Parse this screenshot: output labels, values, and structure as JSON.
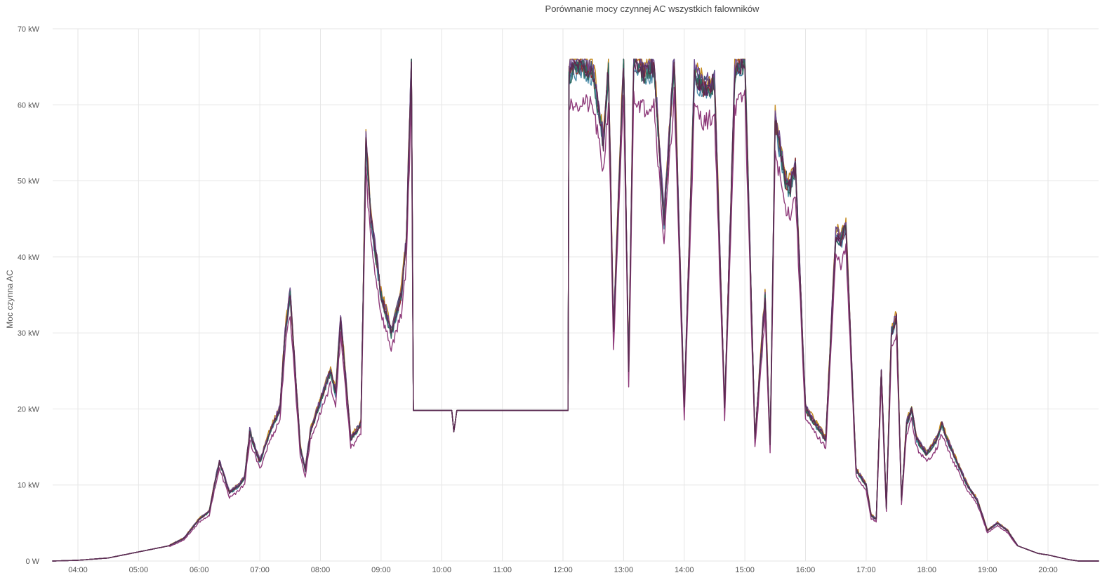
{
  "chart_data": {
    "type": "line",
    "title": "Porównanie mocy czynnej AC wszystkich falowników",
    "ylabel": "Moc czynna AC",
    "xlabel": "",
    "ylim": [
      0,
      70
    ],
    "y_unit": "kW",
    "y_ticks": [
      {
        "value": 0,
        "label": "0 W"
      },
      {
        "value": 10,
        "label": "10 kW"
      },
      {
        "value": 20,
        "label": "20 kW"
      },
      {
        "value": 30,
        "label": "30 kW"
      },
      {
        "value": 40,
        "label": "40 kW"
      },
      {
        "value": 50,
        "label": "50 kW"
      },
      {
        "value": 60,
        "label": "60 kW"
      },
      {
        "value": 70,
        "label": "70 kW"
      }
    ],
    "xlim": [
      "03:35",
      "20:50"
    ],
    "x_ticks": [
      "04:00",
      "05:00",
      "06:00",
      "07:00",
      "08:00",
      "09:00",
      "10:00",
      "11:00",
      "12:00",
      "13:00",
      "14:00",
      "15:00",
      "16:00",
      "17:00",
      "18:00",
      "19:00",
      "20:00"
    ],
    "grid": true,
    "legend": "none",
    "base_series": {
      "x": [
        "03:35",
        "04:00",
        "04:30",
        "05:00",
        "05:30",
        "05:45",
        "06:00",
        "06:10",
        "06:15",
        "06:20",
        "06:30",
        "06:40",
        "06:45",
        "06:50",
        "07:00",
        "07:10",
        "07:20",
        "07:25",
        "07:30",
        "07:40",
        "07:45",
        "07:50",
        "08:00",
        "08:10",
        "08:15",
        "08:20",
        "08:30",
        "08:40",
        "08:45",
        "08:50",
        "09:00",
        "09:10",
        "09:20",
        "09:25",
        "09:30",
        "09:32",
        "10:00",
        "10:10",
        "10:12",
        "10:15",
        "10:20",
        "11:00",
        "11:30",
        "12:00",
        "12:05",
        "12:06",
        "12:10",
        "12:20",
        "12:30",
        "12:40",
        "12:45",
        "12:50",
        "13:00",
        "13:05",
        "13:10",
        "13:20",
        "13:30",
        "13:40",
        "13:50",
        "14:00",
        "14:10",
        "14:20",
        "14:30",
        "14:40",
        "14:50",
        "15:00",
        "15:10",
        "15:20",
        "15:25",
        "15:30",
        "15:40",
        "15:45",
        "15:50",
        "16:00",
        "16:10",
        "16:20",
        "16:30",
        "16:35",
        "16:40",
        "16:50",
        "16:55",
        "17:00",
        "17:05",
        "17:10",
        "17:15",
        "17:20",
        "17:25",
        "17:30",
        "17:35",
        "17:40",
        "17:45",
        "17:50",
        "18:00",
        "18:10",
        "18:15",
        "18:20",
        "18:30",
        "18:40",
        "18:50",
        "19:00",
        "19:10",
        "19:20",
        "19:30",
        "19:40",
        "19:50",
        "20:00",
        "20:10",
        "20:20",
        "20:30",
        "20:45"
      ],
      "y": [
        0,
        0.1,
        0.4,
        1.2,
        2,
        3,
        5.5,
        6.5,
        10,
        13,
        9,
        10,
        11,
        17,
        13,
        17,
        20,
        30,
        35,
        15,
        12,
        17,
        21,
        25,
        22,
        32,
        16,
        18,
        55,
        45,
        35,
        30,
        35,
        42,
        66,
        19.8,
        19.8,
        19.8,
        17,
        19.8,
        19.8,
        19.8,
        19.8,
        19.8,
        19.8,
        64,
        65,
        65,
        64,
        55,
        65,
        30,
        66,
        25,
        66,
        64,
        65,
        45,
        66,
        20,
        64,
        62,
        63,
        20,
        64,
        66,
        16,
        35,
        15,
        58,
        50,
        49,
        52,
        20,
        18,
        16,
        43,
        42,
        44,
        12,
        11,
        10,
        6,
        5.5,
        25,
        7,
        30,
        32,
        8,
        18,
        20,
        16,
        14,
        16,
        18,
        16,
        13,
        10,
        8,
        4,
        5,
        4,
        2,
        1.5,
        1,
        0.8,
        0.5,
        0.2,
        0,
        0
      ]
    },
    "series": [
      {
        "color": "#5b1a5e",
        "offset": 0,
        "scale": 1.0
      },
      {
        "color": "#3d4f73",
        "offset": 0,
        "scale": 1.01
      },
      {
        "color": "#c48a1e",
        "offset": 0,
        "scale": 1.02
      },
      {
        "color": "#4a8aa8",
        "offset": 0,
        "scale": 0.99
      },
      {
        "color": "#8b2f2f",
        "offset": 0,
        "scale": 1.0
      },
      {
        "color": "#6e4a8e",
        "offset": 0,
        "scale": 1.015
      },
      {
        "color": "#2f6b5e",
        "offset": 0,
        "scale": 0.995
      },
      {
        "color": "#8e3a7a",
        "offset": 0,
        "scale": 0.93
      },
      {
        "color": "#5a2a50",
        "offset": 0,
        "scale": 1.0
      }
    ]
  }
}
